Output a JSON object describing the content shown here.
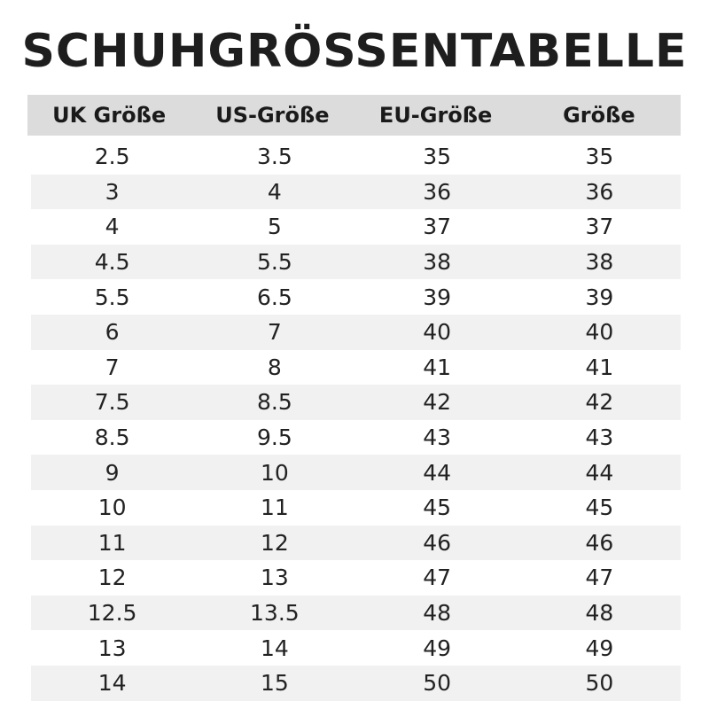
{
  "title": "SCHUHGRÖSSENTABELLE",
  "headers": [
    "UK Größe",
    "US-Größe",
    "EU-Größe",
    "Größe"
  ],
  "rows": [
    [
      "2.5",
      "3.5",
      "35",
      "35"
    ],
    [
      "3",
      "4",
      "36",
      "36"
    ],
    [
      "4",
      "5",
      "37",
      "37"
    ],
    [
      "4.5",
      "5.5",
      "38",
      "38"
    ],
    [
      "5.5",
      "6.5",
      "39",
      "39"
    ],
    [
      "6",
      "7",
      "40",
      "40"
    ],
    [
      "7",
      "8",
      "41",
      "41"
    ],
    [
      "7.5",
      "8.5",
      "42",
      "42"
    ],
    [
      "8.5",
      "9.5",
      "43",
      "43"
    ],
    [
      "9",
      "10",
      "44",
      "44"
    ],
    [
      "10",
      "11",
      "45",
      "45"
    ],
    [
      "11",
      "12",
      "46",
      "46"
    ],
    [
      "12",
      "13",
      "47",
      "47"
    ],
    [
      "12.5",
      "13.5",
      "48",
      "48"
    ],
    [
      "13",
      "14",
      "49",
      "49"
    ],
    [
      "14",
      "15",
      "50",
      "50"
    ]
  ],
  "colors": {
    "header_bg": "#dcdcdc",
    "alt_row_bg": "#f1f1f1"
  }
}
